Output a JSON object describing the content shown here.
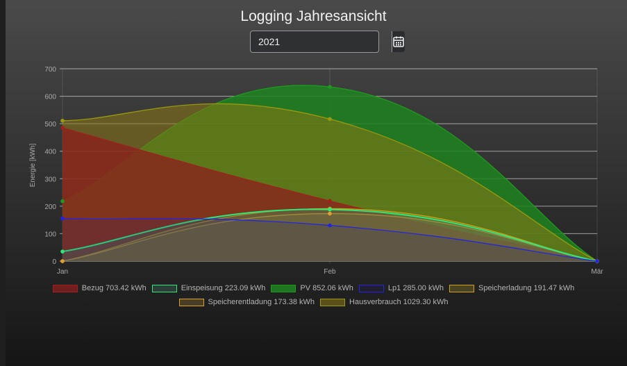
{
  "page": {
    "title": "Logging Jahresansicht",
    "year_value": "2021",
    "calendar_icon": "calendar-icon"
  },
  "colors": {
    "bezug": "#8c1d1d",
    "einspeisung": "#2ecc71",
    "pv": "#1a8a1a",
    "lp1": "#1010cc",
    "speicherladung": "#d4a017",
    "speicherentladung": "#e0a030",
    "hausverbrauch": "#8a8a10"
  },
  "chart_data": {
    "type": "area",
    "categories": [
      "Jan",
      "Feb",
      "Mär"
    ],
    "ylabel": "Energie [kWh]",
    "ylim": [
      0,
      700
    ],
    "yticks": [
      0,
      100,
      200,
      300,
      400,
      500,
      600,
      700
    ],
    "grid": true,
    "legend_position": "bottom",
    "series": [
      {
        "key": "bezug",
        "name": "Bezug 703.42 kWh",
        "values": [
          485,
          219,
          0
        ],
        "fill": "rgba(140,30,30,0.75)",
        "stroke": "#a02020"
      },
      {
        "key": "einspeisung",
        "name": "Einspeisung 223.09 kWh",
        "values": [
          35,
          188,
          0
        ],
        "fill": "rgba(60,110,90,0.4)",
        "stroke": "#2ee87a"
      },
      {
        "key": "pv",
        "name": "PV 852.06 kWh",
        "values": [
          218,
          634,
          0
        ],
        "fill": "rgba(30,130,30,0.85)",
        "stroke": "#1e9a1e"
      },
      {
        "key": "lp1",
        "name": "Lp1 285.00 kWh",
        "values": [
          155,
          130,
          0
        ],
        "fill": "rgba(20,20,140,0.15)",
        "stroke": "#2424e0"
      },
      {
        "key": "speicherladung",
        "name": "Speicherladung 191.47 kWh",
        "values": [
          0,
          191,
          0
        ],
        "fill": "rgba(150,130,40,0.35)",
        "stroke": "#d4a017"
      },
      {
        "key": "speicherentladung",
        "name": "Speicherentladung 173.38 kWh",
        "values": [
          0,
          173,
          0
        ],
        "fill": "rgba(150,120,50,0.35)",
        "stroke": "#e0a030"
      },
      {
        "key": "hausverbrauch",
        "name": "Hausverbrauch 1029.30 kWh",
        "values": [
          511,
          517,
          0
        ],
        "fill": "rgba(140,120,20,0.55)",
        "stroke": "#9a9a10"
      }
    ]
  }
}
